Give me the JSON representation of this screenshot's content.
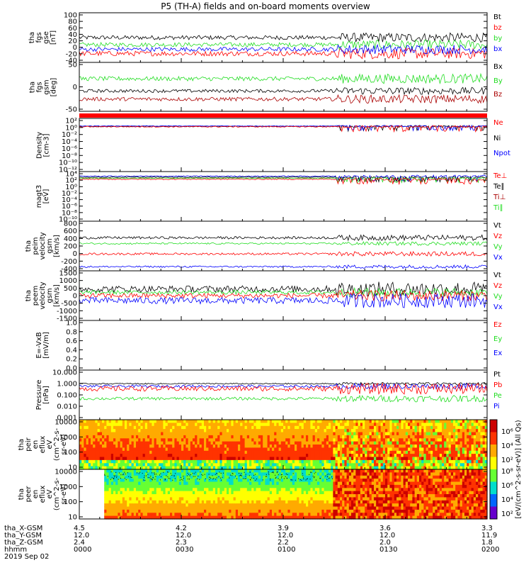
{
  "title": "P5 (TH-A) fields and on-board moments overview",
  "panels": [
    {
      "id": "fgs-gse",
      "ylabel": [
        "tha",
        "fgs",
        "gse",
        "[nT]"
      ],
      "ticks": [
        "100",
        "80",
        "60",
        "40",
        "20",
        "0",
        "-20",
        "-40"
      ],
      "ylim": [
        -40,
        100
      ],
      "legend": [
        {
          "label": "Bt",
          "color": "#000000"
        },
        {
          "label": "bz",
          "color": "#ff0000"
        },
        {
          "label": "by",
          "color": "#22dd22"
        },
        {
          "label": "bx",
          "color": "#0000ff"
        }
      ]
    },
    {
      "id": "fgs-angles",
      "ylabel": [
        "tha",
        "fgs",
        "gsm",
        "[deg]"
      ],
      "ticks": [
        "50",
        "0",
        "-50"
      ],
      "ylim": [
        -90,
        90
      ],
      "legend": [
        {
          "label": "Bx",
          "color": "#000000"
        },
        {
          "label": "By",
          "color": "#22dd22"
        },
        {
          "label": "Bz",
          "color": "#aa0000"
        }
      ]
    },
    {
      "id": "density",
      "ylabel": [
        "Density",
        "[cm-3]"
      ],
      "ticks": [
        "10²",
        "10⁰",
        "10⁻²",
        "10⁻⁴",
        "10⁻⁶",
        "10⁻⁸",
        "10⁻¹⁰",
        "10⁻¹²"
      ],
      "ylim": [
        -13,
        3
      ],
      "scale": "log",
      "legend": [
        {
          "label": "Ne",
          "color": "#ff0000"
        },
        {
          "label": "Ni",
          "color": "#000000"
        },
        {
          "label": "Npot",
          "color": "#0000ff"
        }
      ]
    },
    {
      "id": "temperature",
      "ylabel": [
        "magt3",
        "[eV]"
      ],
      "ticks": [
        "10⁴",
        "10²",
        "10⁰",
        "10⁻²",
        "10⁻⁴",
        "10⁻⁶",
        "10⁻⁸",
        "10⁻¹⁰"
      ],
      "ylim": [
        -11,
        4
      ],
      "scale": "log",
      "legend": [
        {
          "label": "Te⊥",
          "color": "#ff0000"
        },
        {
          "label": "Te∥",
          "color": "#000000"
        },
        {
          "label": "Ti⊥",
          "color": "#aa0000"
        },
        {
          "label": "Ti∥",
          "color": "#22dd22"
        }
      ]
    },
    {
      "id": "ion-velocity",
      "ylabel": [
        "tha",
        "peim",
        "velocity",
        "gsm",
        "[km/s]"
      ],
      "ticks": [
        "800",
        "600",
        "400",
        "200",
        "0",
        "-200",
        "-400"
      ],
      "ylim": [
        -400,
        800
      ],
      "legend": [
        {
          "label": "Vt",
          "color": "#000000"
        },
        {
          "label": "Vz",
          "color": "#ff0000"
        },
        {
          "label": "Vy",
          "color": "#22dd22"
        },
        {
          "label": "Vx",
          "color": "#0000ff"
        }
      ]
    },
    {
      "id": "electron-velocity",
      "ylabel": [
        "tha",
        "peem",
        "velocity",
        "gsm",
        "[km/s]"
      ],
      "ticks": [
        "1500",
        "1000",
        "500",
        "0",
        "-500",
        "-1000",
        "-1500"
      ],
      "ylim": [
        -1500,
        1500
      ],
      "legend": [
        {
          "label": "Vt",
          "color": "#000000"
        },
        {
          "label": "Vz",
          "color": "#ff0000"
        },
        {
          "label": "Vy",
          "color": "#22dd22"
        },
        {
          "label": "Vx",
          "color": "#0000ff"
        }
      ]
    },
    {
      "id": "efield",
      "ylabel": [
        "E=-VxB",
        "[mV/m]"
      ],
      "ticks": [
        "1.0",
        "0.8",
        "0.6",
        "0.4",
        "0.2",
        "0.0"
      ],
      "ylim": [
        0,
        1
      ],
      "legend": [
        {
          "label": "Ez",
          "color": "#ff0000"
        },
        {
          "label": "Ey",
          "color": "#22dd22"
        },
        {
          "label": "Ex",
          "color": "#0000ff"
        }
      ]
    },
    {
      "id": "pressure",
      "ylabel": [
        "Pressure",
        "[nPa]"
      ],
      "ticks": [
        "10.000",
        "1.000",
        "0.100",
        "0.010",
        "0.001"
      ],
      "ylim": [
        -3,
        1
      ],
      "scale": "log",
      "legend": [
        {
          "label": "Pt",
          "color": "#000000"
        },
        {
          "label": "Pb",
          "color": "#ff0000"
        },
        {
          "label": "Pe",
          "color": "#22dd22"
        },
        {
          "label": "Pi",
          "color": "#0000ff"
        }
      ]
    },
    {
      "id": "ion-spectrogram",
      "ylabel": [
        "tha",
        "peir",
        "en",
        "eflux",
        "eV",
        "(cm^2-s-",
        "sr-eV)"
      ],
      "ticks": [
        "10000",
        "1000",
        "100",
        "10"
      ],
      "ylim": [
        5,
        20000
      ],
      "scale": "log",
      "legend": []
    },
    {
      "id": "electron-spectrogram",
      "ylabel": [
        "tha",
        "peer",
        "en",
        "eflux",
        "eV",
        "(cm^2-s-",
        "sr-eV)"
      ],
      "ticks": [
        "10000",
        "1000",
        "100",
        "10"
      ],
      "ylim": [
        5,
        20000
      ],
      "scale": "log",
      "legend": []
    }
  ],
  "colorbar": {
    "label": "[eV/(cm^2-s-sr-eV)] (All Qs)",
    "ticks_upper": [
      "10⁶",
      "10⁴",
      "10²"
    ],
    "ticks_lower": [
      "10⁸",
      "10⁶",
      "10⁴",
      "10²"
    ]
  },
  "footer": {
    "row_labels": [
      "tha_X-GSM",
      "tha_Y-GSM",
      "tha_Z-GSM",
      "hhmm",
      "2019 Sep 02"
    ],
    "columns": [
      {
        "values": [
          "4.5",
          "12.0",
          "2.4",
          "0000"
        ]
      },
      {
        "values": [
          "4.2",
          "12.0",
          "2.3",
          "0030"
        ]
      },
      {
        "values": [
          "3.9",
          "12.0",
          "2.2",
          "0100"
        ]
      },
      {
        "values": [
          "3.6",
          "12.0",
          "2.0",
          "0130"
        ]
      },
      {
        "values": [
          "3.3",
          "11.9",
          "1.8",
          "0200"
        ]
      }
    ]
  },
  "chart_data": {
    "type": "line",
    "title": "P5 (TH-A) fields and on-board moments overview",
    "x_time_hhmm": [
      "0000",
      "0030",
      "0100",
      "0130",
      "0200"
    ],
    "x_date": "2019 Sep 02",
    "series": [
      {
        "panel": "fgs-gse",
        "name": "Bt",
        "x": [
          "0000",
          "0030",
          "0100",
          "0120",
          "0130",
          "0200"
        ],
        "values": [
          30,
          28,
          30,
          25,
          25,
          30
        ]
      },
      {
        "panel": "fgs-gse",
        "name": "bz",
        "x": [
          "0000",
          "0030",
          "0100",
          "0120",
          "0130",
          "0200"
        ],
        "values": [
          -15,
          -15,
          -12,
          -10,
          -10,
          -15
        ]
      },
      {
        "panel": "fgs-gse",
        "name": "by",
        "x": [
          "0000",
          "0030",
          "0100",
          "0120",
          "0130",
          "0200"
        ],
        "values": [
          10,
          12,
          12,
          0,
          10,
          15
        ]
      },
      {
        "panel": "fgs-gse",
        "name": "bx",
        "x": [
          "0000",
          "0030",
          "0100",
          "0120",
          "0130",
          "0200"
        ],
        "values": [
          -5,
          -3,
          -3,
          -20,
          -5,
          0
        ]
      },
      {
        "panel": "fgs-angles",
        "name": "By",
        "x": [
          "0000",
          "0030",
          "0100",
          "0130",
          "0200"
        ],
        "values": [
          30,
          30,
          25,
          30,
          30
        ]
      },
      {
        "panel": "fgs-angles",
        "name": "Bx",
        "x": [
          "0000",
          "0030",
          "0100",
          "0130",
          "0200"
        ],
        "values": [
          -15,
          -15,
          -15,
          0,
          0
        ]
      },
      {
        "panel": "fgs-angles",
        "name": "Bz",
        "x": [
          "0000",
          "0030",
          "0100",
          "0130",
          "0200"
        ],
        "values": [
          -45,
          -50,
          -45,
          -20,
          -30
        ]
      },
      {
        "panel": "ion-velocity",
        "name": "Vt",
        "x": [
          "0000",
          "0030",
          "0100",
          "0130",
          "0200"
        ],
        "values": [
          400,
          420,
          390,
          250,
          400
        ]
      },
      {
        "panel": "ion-velocity",
        "name": "Vz",
        "x": [
          "0000",
          "0030",
          "0100",
          "0130",
          "0200"
        ],
        "values": [
          10,
          0,
          20,
          50,
          100
        ]
      },
      {
        "panel": "ion-velocity",
        "name": "Vy",
        "x": [
          "0000",
          "0030",
          "0100",
          "0130",
          "0200"
        ],
        "values": [
          250,
          300,
          260,
          150,
          300
        ]
      },
      {
        "panel": "ion-velocity",
        "name": "Vx",
        "x": [
          "0000",
          "0030",
          "0100",
          "0130",
          "0200"
        ],
        "values": [
          -300,
          -320,
          -290,
          -200,
          -300
        ]
      },
      {
        "panel": "pressure",
        "name": "Pt",
        "x": [
          "0000",
          "0030",
          "0100",
          "0130",
          "0200"
        ],
        "values": [
          0.8,
          0.8,
          0.9,
          0.5,
          0.7
        ]
      },
      {
        "panel": "pressure",
        "name": "Pb",
        "x": [
          "0000",
          "0030",
          "0100",
          "0130",
          "0200"
        ],
        "values": [
          0.3,
          0.3,
          0.4,
          0.2,
          0.3
        ]
      },
      {
        "panel": "pressure",
        "name": "Pe",
        "x": [
          "0000",
          "0030",
          "0100",
          "0130",
          "0200"
        ],
        "values": [
          0.05,
          0.05,
          0.06,
          0.03,
          0.04
        ]
      },
      {
        "panel": "pressure",
        "name": "Pi",
        "x": [
          "0000",
          "0030",
          "0100",
          "0130",
          "0200"
        ],
        "values": [
          0.5,
          0.5,
          0.5,
          0.3,
          0.4
        ]
      }
    ]
  }
}
